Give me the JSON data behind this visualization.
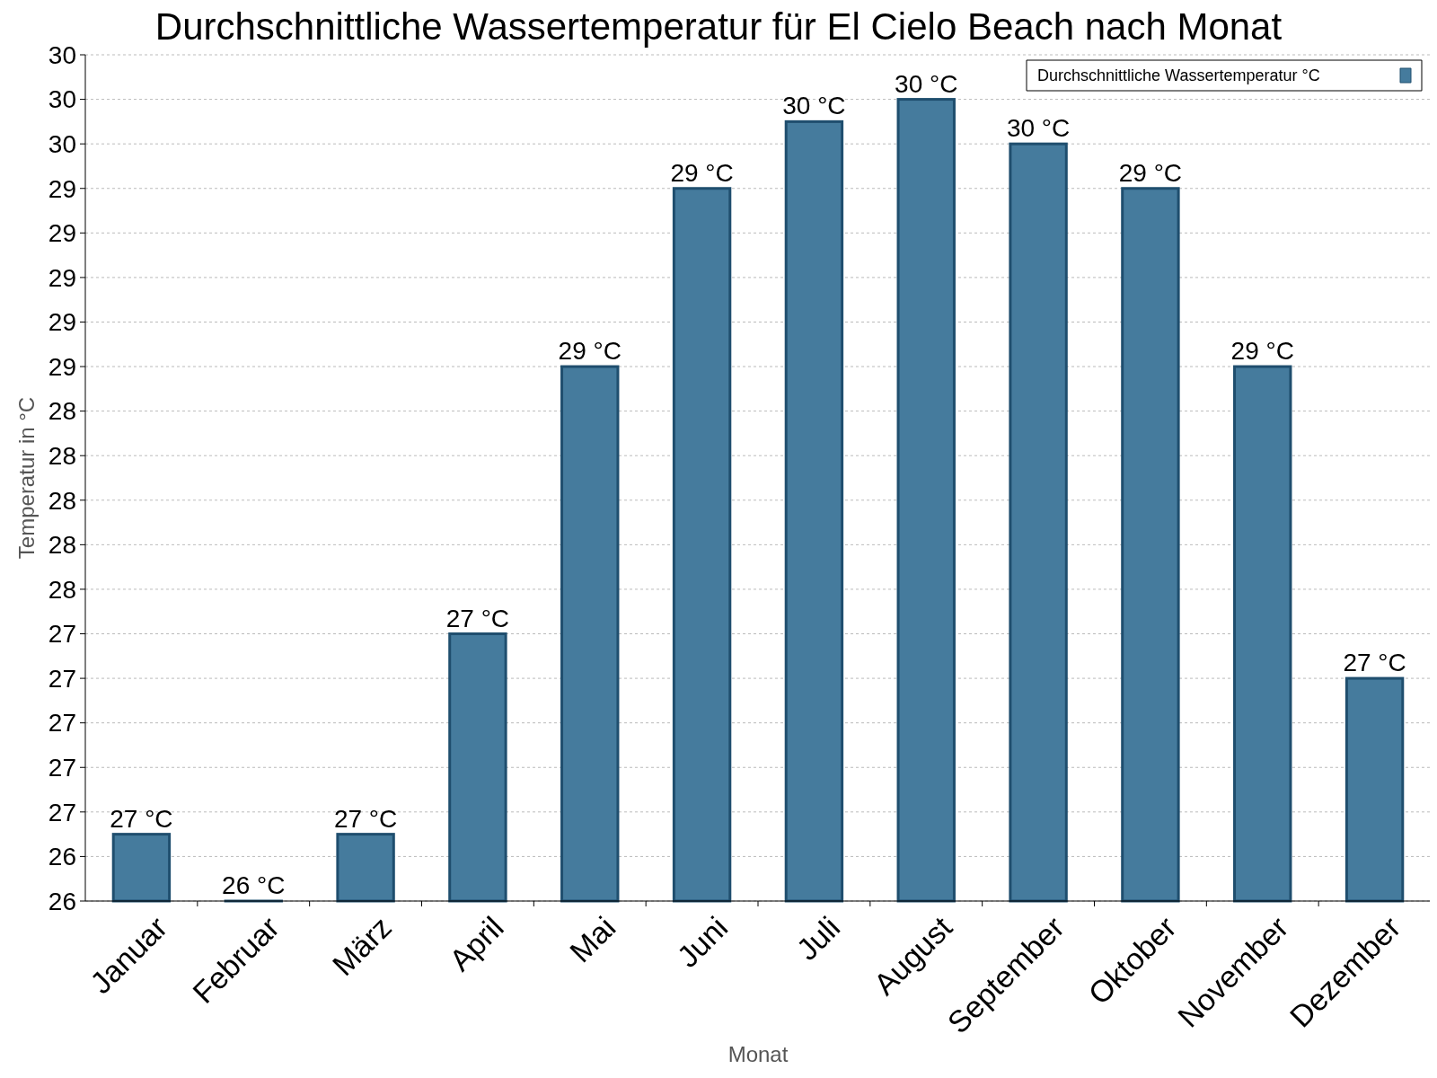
{
  "chart_data": {
    "type": "bar",
    "title": "Durchschnittliche Wassertemperatur für El Cielo Beach nach Monat",
    "xlabel": "Monat",
    "ylabel": "Temperatur in °C",
    "categories": [
      "Januar",
      "Februar",
      "März",
      "April",
      "Mai",
      "Juni",
      "Juli",
      "August",
      "September",
      "Oktober",
      "November",
      "Dezember"
    ],
    "series": [
      {
        "name": "Durchschnittliche Wassertemperatur °C",
        "color": "#457b9d",
        "values": [
          26.5,
          26.2,
          26.5,
          27.4,
          28.6,
          29.4,
          29.7,
          29.8,
          29.6,
          29.4,
          28.6,
          27.2
        ],
        "value_labels": [
          "27 °C",
          "26 °C",
          "27 °C",
          "27 °C",
          "29 °C",
          "29 °C",
          "30 °C",
          "30 °C",
          "30 °C",
          "29 °C",
          "29 °C",
          "27 °C"
        ]
      }
    ],
    "ylim": [
      26.2,
      30.0
    ],
    "yticks": [
      {
        "value": 26.2,
        "label": "26"
      },
      {
        "value": 26.4,
        "label": "26"
      },
      {
        "value": 26.6,
        "label": "27"
      },
      {
        "value": 26.8,
        "label": "27"
      },
      {
        "value": 27.0,
        "label": "27"
      },
      {
        "value": 27.2,
        "label": "27"
      },
      {
        "value": 27.4,
        "label": "27"
      },
      {
        "value": 27.6,
        "label": "28"
      },
      {
        "value": 27.8,
        "label": "28"
      },
      {
        "value": 28.0,
        "label": "28"
      },
      {
        "value": 28.2,
        "label": "28"
      },
      {
        "value": 28.4,
        "label": "28"
      },
      {
        "value": 28.6,
        "label": "29"
      },
      {
        "value": 28.8,
        "label": "29"
      },
      {
        "value": 29.0,
        "label": "29"
      },
      {
        "value": 29.2,
        "label": "29"
      },
      {
        "value": 29.4,
        "label": "29"
      },
      {
        "value": 29.6,
        "label": "30"
      },
      {
        "value": 29.8,
        "label": "30"
      },
      {
        "value": 30.0,
        "label": "30"
      }
    ],
    "grid": "y",
    "legend": "top right"
  }
}
